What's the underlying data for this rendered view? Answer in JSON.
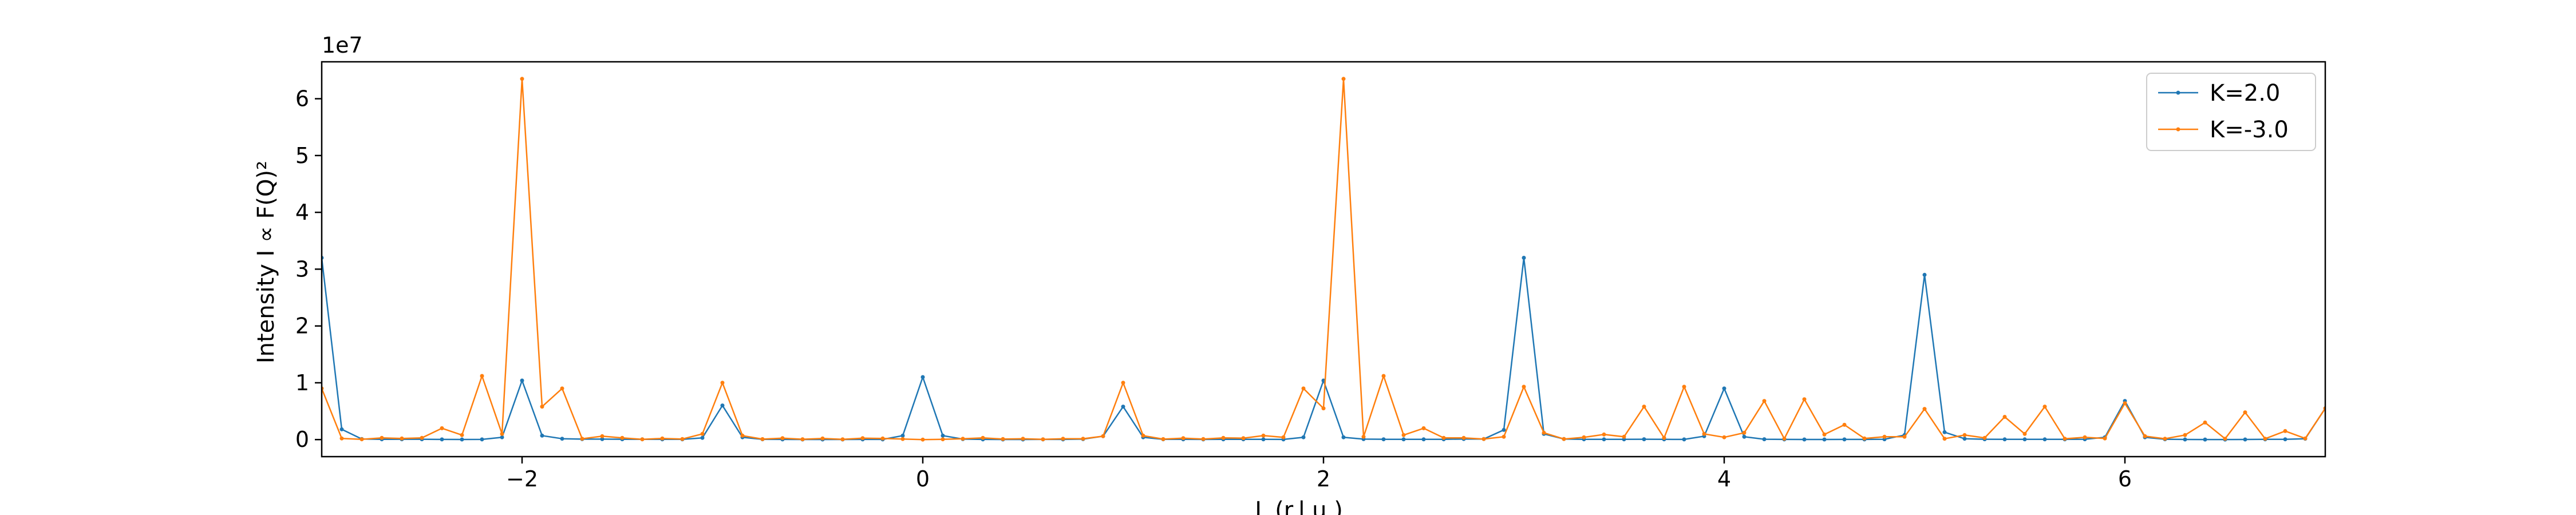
{
  "chart_data": {
    "type": "line",
    "xlabel": "L (r.l.u.)",
    "ylabel": "Intensity I ∝ F(Q)²",
    "offset_text": "1e7",
    "xlim": [
      -3.0,
      7.0
    ],
    "ylim": [
      -0.3,
      6.65
    ],
    "y_unit_scale": 10000000,
    "xticks": [
      -2,
      0,
      2,
      4,
      6
    ],
    "xtick_labels": [
      "−2",
      "0",
      "2",
      "4",
      "6"
    ],
    "yticks": [
      0,
      1,
      2,
      3,
      4,
      5,
      6
    ],
    "ytick_labels": [
      "0",
      "1",
      "2",
      "3",
      "4",
      "5",
      "6"
    ],
    "grid": false,
    "legend_position": "top-right",
    "x": [
      -3.0,
      -2.9,
      -2.8,
      -2.7,
      -2.6,
      -2.5,
      -2.4,
      -2.3,
      -2.2,
      -2.1,
      -2.0,
      -1.9,
      -1.8,
      -1.7,
      -1.6,
      -1.5,
      -1.4,
      -1.3,
      -1.2,
      -1.1,
      -1.0,
      -0.9,
      -0.8,
      -0.7,
      -0.6,
      -0.5,
      -0.4,
      -0.3,
      -0.2,
      -0.1,
      0.0,
      0.1,
      0.2,
      0.3,
      0.4,
      0.5,
      0.6,
      0.7,
      0.8,
      0.9,
      1.0,
      1.1,
      1.2,
      1.3,
      1.4,
      1.5,
      1.6,
      1.7,
      1.8,
      1.9,
      2.0,
      2.1,
      2.2,
      2.3,
      2.4,
      2.5,
      2.6,
      2.7,
      2.8,
      2.9,
      3.0,
      3.1,
      3.2,
      3.3,
      3.4,
      3.5,
      3.6,
      3.7,
      3.8,
      3.9,
      4.0,
      4.1,
      4.2,
      4.3,
      4.4,
      4.5,
      4.6,
      4.7,
      4.8,
      4.9,
      5.0,
      5.1,
      5.2,
      5.3,
      5.4,
      5.5,
      5.6,
      5.7,
      5.8,
      5.9,
      6.0,
      6.1,
      6.2,
      6.3,
      6.4,
      6.5,
      6.6,
      6.7,
      6.8,
      6.9,
      7.0
    ],
    "series": [
      {
        "name": "K=2.0",
        "color": "#1f77b4",
        "values": [
          32000000,
          1800000,
          100000,
          50000,
          60000,
          60000,
          30000,
          20000,
          30000,
          400000,
          10400000,
          700000,
          150000,
          80000,
          80000,
          60000,
          50000,
          40000,
          40000,
          300000,
          6000000,
          400000,
          50000,
          30000,
          20000,
          20000,
          20000,
          30000,
          30000,
          700000,
          11000000,
          700000,
          80000,
          30000,
          20000,
          20000,
          30000,
          30000,
          80000,
          600000,
          5800000,
          400000,
          50000,
          40000,
          30000,
          40000,
          50000,
          40000,
          30000,
          400000,
          10400000,
          400000,
          80000,
          50000,
          40000,
          40000,
          50000,
          100000,
          100000,
          1700000,
          32000000,
          1000000,
          100000,
          50000,
          40000,
          40000,
          60000,
          40000,
          30000,
          600000,
          9000000,
          500000,
          60000,
          30000,
          20000,
          20000,
          30000,
          30000,
          60000,
          800000,
          29000000,
          1300000,
          150000,
          60000,
          40000,
          40000,
          40000,
          40000,
          60000,
          400000,
          6800000,
          400000,
          60000,
          20000,
          10000,
          10000,
          20000,
          40000,
          50000,
          150000,
          5500000
        ]
      },
      {
        "name": "K=-3.0",
        "color": "#ff7f0e",
        "values": [
          9000000,
          200000,
          50000,
          300000,
          200000,
          300000,
          2000000,
          800000,
          11200000,
          1000000,
          63500000,
          5800000,
          9000000,
          150000,
          600000,
          300000,
          50000,
          200000,
          100000,
          1000000,
          10000000,
          700000,
          80000,
          250000,
          60000,
          200000,
          50000,
          250000,
          200000,
          100000,
          0,
          50000,
          150000,
          300000,
          100000,
          150000,
          50000,
          150000,
          150000,
          600000,
          10000000,
          700000,
          80000,
          250000,
          100000,
          300000,
          250000,
          700000,
          400000,
          9000000,
          5500000,
          63500000,
          500000,
          11200000,
          800000,
          2000000,
          300000,
          300000,
          100000,
          500000,
          9300000,
          1200000,
          100000,
          400000,
          900000,
          500000,
          5800000,
          300000,
          9300000,
          1000000,
          400000,
          1200000,
          6800000,
          150000,
          7100000,
          900000,
          2600000,
          200000,
          500000,
          500000,
          5400000,
          150000,
          800000,
          300000,
          4000000,
          1000000,
          5800000,
          150000,
          400000,
          200000,
          6400000,
          600000,
          150000,
          800000,
          3000000,
          150000,
          4800000,
          150000,
          1500000,
          200000,
          5500000
        ]
      }
    ]
  }
}
